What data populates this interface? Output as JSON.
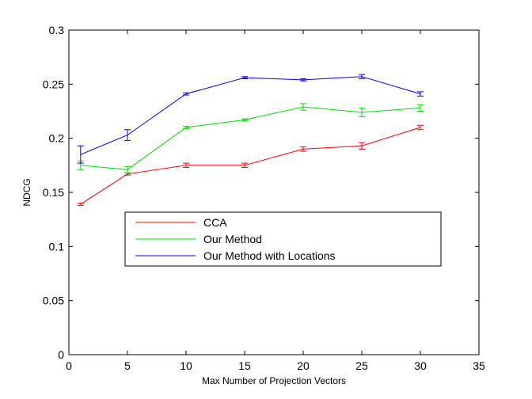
{
  "chart_data": {
    "type": "line",
    "title": "",
    "xlabel": "Max Number of Projection Vectors",
    "ylabel": "NDCG",
    "xlim": [
      0,
      35
    ],
    "ylim": [
      0,
      0.3
    ],
    "xticks": [
      0,
      5,
      10,
      15,
      20,
      25,
      30,
      35
    ],
    "yticks": [
      0,
      0.05,
      0.1,
      0.15,
      0.2,
      0.25,
      0.3
    ],
    "xtick_labels": [
      "0",
      "5",
      "10",
      "15",
      "20",
      "25",
      "30",
      "35"
    ],
    "ytick_labels": [
      "0",
      "0.05",
      "0.1",
      "0.15",
      "0.2",
      "0.25",
      "0.3"
    ],
    "grid": false,
    "legend_position": "center-left",
    "x": [
      1,
      5,
      10,
      15,
      20,
      25,
      30
    ],
    "series": [
      {
        "name": "CCA",
        "color": "#ff0000",
        "values": [
          0.139,
          0.167,
          0.175,
          0.175,
          0.19,
          0.193,
          0.21
        ],
        "errors": [
          0.001,
          0.001,
          0.002,
          0.002,
          0.002,
          0.003,
          0.002
        ]
      },
      {
        "name": "Our Method",
        "color": "#00dd00",
        "values": [
          0.175,
          0.171,
          0.21,
          0.217,
          0.229,
          0.224,
          0.228
        ],
        "errors": [
          0.004,
          0.003,
          0.001,
          0.001,
          0.003,
          0.004,
          0.003
        ]
      },
      {
        "name": "Our Method with Locations",
        "color": "#0000ff",
        "values": [
          0.185,
          0.203,
          0.241,
          0.256,
          0.254,
          0.257,
          0.241
        ],
        "errors": [
          0.008,
          0.005,
          0.001,
          0.001,
          0.001,
          0.002,
          0.002
        ]
      }
    ]
  }
}
